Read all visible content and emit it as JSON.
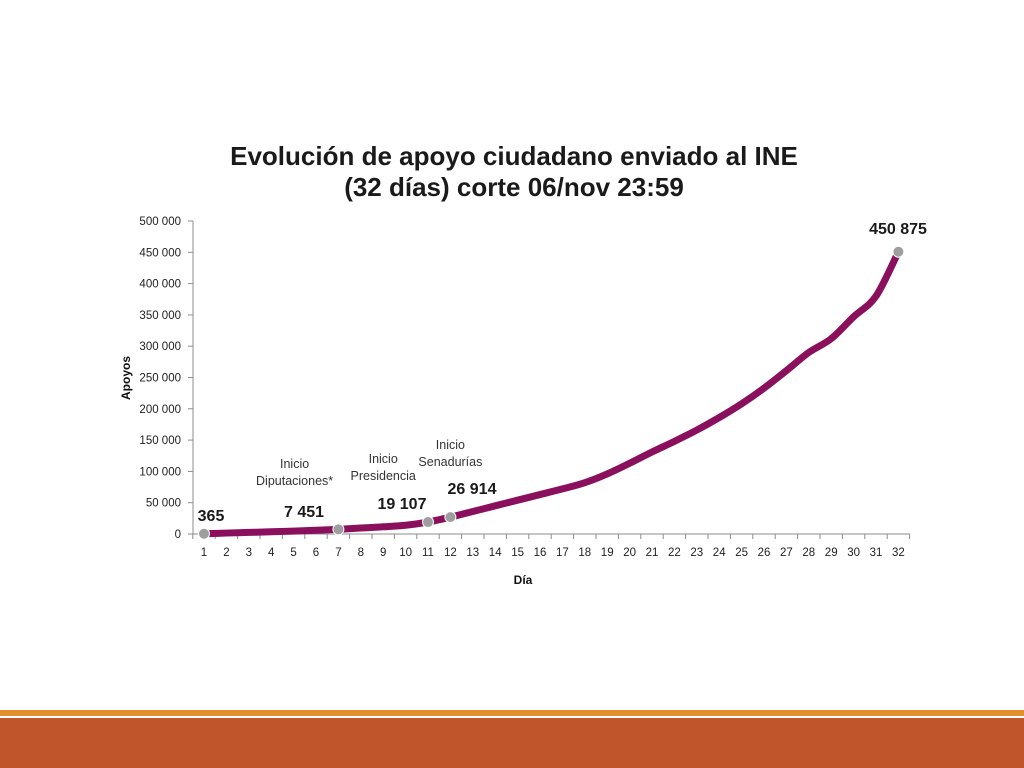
{
  "colors": {
    "series": "#8a0f5c",
    "marker": "#9e9e9e",
    "axis": "#8c8c8c",
    "footer_line": "#e18f2b",
    "footer_bar": "#c0552b"
  },
  "chart_data": {
    "type": "line",
    "title": [
      "Evolución de apoyo ciudadano enviado al INE",
      "(32 días) corte 06/nov 23:59"
    ],
    "xlabel": "Día",
    "ylabel": "Apoyos",
    "x": [
      1,
      2,
      3,
      4,
      5,
      6,
      7,
      8,
      9,
      10,
      11,
      12,
      13,
      14,
      15,
      16,
      17,
      18,
      19,
      20,
      21,
      22,
      23,
      24,
      25,
      26,
      27,
      28,
      29,
      30,
      31,
      32
    ],
    "ylim": [
      0,
      500000
    ],
    "yticks": [
      "0",
      "50 000",
      "100 000",
      "150 000",
      "200 000",
      "250 000",
      "300 000",
      "350 000",
      "400 000",
      "450 000",
      "500 000"
    ],
    "grid": false,
    "legend": "none",
    "series": [
      {
        "values": [
          365,
          1500,
          2500,
          3500,
          4600,
          5900,
          7451,
          9500,
          11500,
          14000,
          19107,
          26914,
          36000,
          45000,
          54000,
          63000,
          72000,
          82000,
          96000,
          113000,
          131000,
          148000,
          166000,
          186000,
          208000,
          233000,
          261000,
          290000,
          312000,
          347000,
          380000,
          450875
        ]
      }
    ],
    "markers": [
      {
        "x": 1,
        "y": 365
      },
      {
        "x": 7,
        "y": 7451
      },
      {
        "x": 11,
        "y": 19107
      },
      {
        "x": 12,
        "y": 26914
      },
      {
        "x": 32,
        "y": 450875
      }
    ],
    "data_labels": [
      {
        "x": 1,
        "text": "365"
      },
      {
        "x": 7,
        "text": "7 451"
      },
      {
        "x": 11,
        "text": "19 107"
      },
      {
        "x": 12,
        "text": "26 914"
      },
      {
        "x": 32,
        "text": "450 875"
      }
    ],
    "annotations": [
      {
        "x": 5,
        "lines": [
          "Inicio",
          "Diputaciones*"
        ]
      },
      {
        "x": 9,
        "lines": [
          "Inicio",
          "Presidencia"
        ]
      },
      {
        "x": 12,
        "lines": [
          "Inicio",
          "Senadurías"
        ]
      }
    ]
  }
}
